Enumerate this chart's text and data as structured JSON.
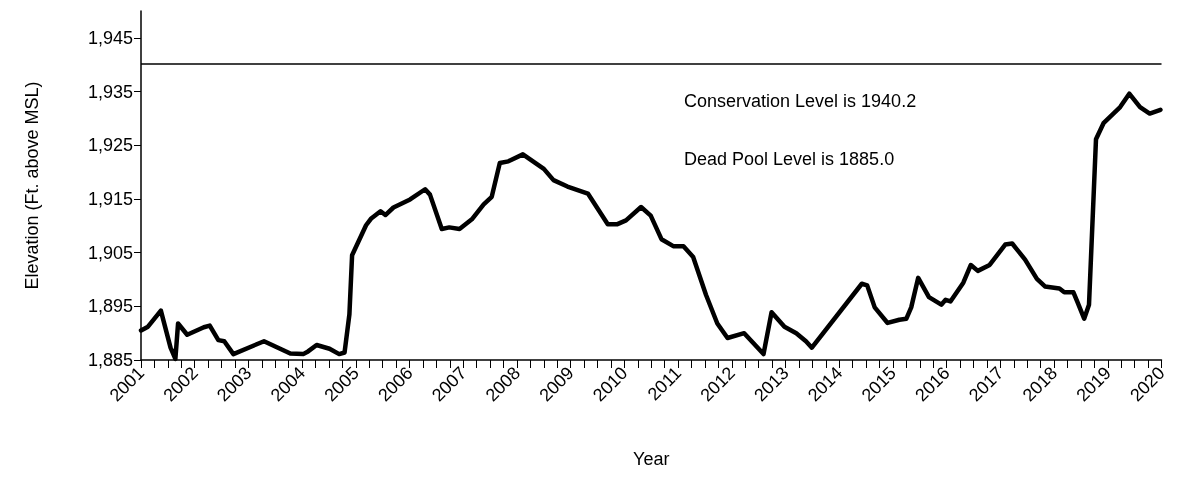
{
  "chart_data": {
    "type": "line",
    "xlabel": "Year",
    "ylabel": "Elevation (Ft. above MSL)",
    "x": [
      2001.0,
      2001.13,
      2001.37,
      2001.55,
      2001.64,
      2001.69,
      2001.86,
      2002.17,
      2002.28,
      2002.44,
      2002.55,
      2002.72,
      2003.29,
      2003.78,
      2004.02,
      2004.11,
      2004.27,
      2004.51,
      2004.69,
      2004.79,
      2004.88,
      2004.93,
      2005.19,
      2005.28,
      2005.46,
      2005.55,
      2005.7,
      2006.01,
      2006.29,
      2006.38,
      2006.6,
      2006.74,
      2006.93,
      2007.16,
      2007.38,
      2007.53,
      2007.68,
      2007.84,
      2008.11,
      2008.5,
      2008.68,
      2008.94,
      2009.32,
      2009.69,
      2009.87,
      2010.03,
      2010.31,
      2010.49,
      2010.69,
      2010.91,
      2011.1,
      2011.28,
      2011.52,
      2011.73,
      2011.92,
      2012.23,
      2012.59,
      2012.74,
      2012.98,
      2013.2,
      2013.38,
      2013.49,
      2014.42,
      2014.52,
      2014.66,
      2014.9,
      2015.12,
      2015.25,
      2015.34,
      2015.47,
      2015.67,
      2015.9,
      2015.98,
      2016.07,
      2016.31,
      2016.45,
      2016.58,
      2016.8,
      2017.09,
      2017.22,
      2017.46,
      2017.68,
      2017.83,
      2018.1,
      2018.19,
      2018.36,
      2018.43,
      2018.56,
      2018.65,
      2018.78,
      2018.92,
      2019.23,
      2019.4,
      2019.6,
      2019.78,
      2019.98
    ],
    "series": [
      {
        "color": "#000000",
        "values": [
          1890.5,
          1891.2,
          1894.2,
          1887.3,
          1885.2,
          1891.8,
          1889.7,
          1891.1,
          1891.4,
          1888.7,
          1888.5,
          1886.1,
          1888.5,
          1886.2,
          1886.1,
          1886.6,
          1887.8,
          1887.1,
          1886.1,
          1886.4,
          1893.5,
          1904.5,
          1910.1,
          1911.3,
          1912.7,
          1912.0,
          1913.4,
          1914.9,
          1916.8,
          1915.8,
          1909.4,
          1909.7,
          1909.4,
          1911.2,
          1914.0,
          1915.4,
          1921.7,
          1922.0,
          1923.3,
          1920.6,
          1918.5,
          1917.3,
          1916.0,
          1910.3,
          1910.3,
          1911.0,
          1913.5,
          1911.9,
          1907.5,
          1906.2,
          1906.2,
          1904.2,
          1897.1,
          1891.8,
          1889.1,
          1890.0,
          1886.1,
          1893.9,
          1891.2,
          1890.0,
          1888.5,
          1887.3,
          1899.2,
          1898.9,
          1894.8,
          1891.9,
          1892.5,
          1892.7,
          1894.8,
          1900.3,
          1896.7,
          1895.3,
          1896.2,
          1895.9,
          1899.4,
          1902.7,
          1901.6,
          1902.7,
          1906.5,
          1906.7,
          1903.7,
          1900.1,
          1898.7,
          1898.3,
          1897.6,
          1897.6,
          1895.9,
          1892.7,
          1895.3,
          1926.1,
          1929.1,
          1932.1,
          1934.6,
          1932.1,
          1930.9,
          1931.6
        ]
      }
    ],
    "xlim": [
      2001,
      2020
    ],
    "xticks": [
      2001,
      2002,
      2003,
      2004,
      2005,
      2006,
      2007,
      2008,
      2009,
      2010,
      2011,
      2012,
      2013,
      2014,
      2015,
      2016,
      2017,
      2018,
      2019,
      2020
    ],
    "ylim": [
      1885,
      1950
    ],
    "yticks": [
      {
        "value": 1885,
        "label": "1,885"
      },
      {
        "value": 1895,
        "label": "1,895"
      },
      {
        "value": 1905,
        "label": "1,905"
      },
      {
        "value": 1915,
        "label": "1,915"
      },
      {
        "value": 1925,
        "label": "1,925"
      },
      {
        "value": 1935,
        "label": "1,935"
      },
      {
        "value": 1945,
        "label": "1,945"
      }
    ],
    "ref_lines": [
      {
        "axis": "y",
        "value": 1940.2,
        "color": "#000000"
      }
    ],
    "annotations": [
      "Conservation Level is 1940.2",
      "Dead Pool Level is 1885.0"
    ],
    "grid": false,
    "marker": "none",
    "line_style": "solid"
  }
}
